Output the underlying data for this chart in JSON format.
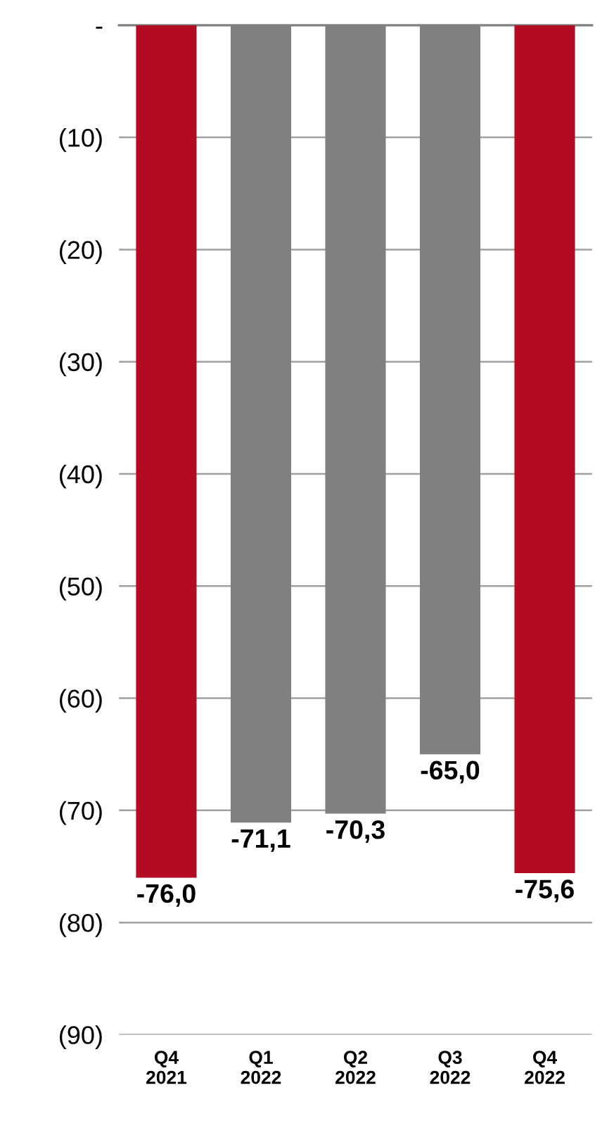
{
  "chart_data": {
    "type": "bar",
    "categories": [
      "Q4\n2021",
      "Q1\n2022",
      "Q2\n2022",
      "Q3\n2022",
      "Q4\n2022"
    ],
    "values": [
      -76.0,
      -71.1,
      -70.3,
      -65.0,
      -75.6
    ],
    "colors": [
      "#b30c22",
      "#808080",
      "#808080",
      "#808080",
      "#b30c22"
    ],
    "value_labels": [
      "-76,0",
      "-71,1",
      "-70,3",
      "-65,0",
      "-75,6"
    ],
    "ylim": [
      -90,
      0
    ],
    "yticks": [
      {
        "value": 0,
        "label": "-"
      },
      {
        "value": -10,
        "label": "(10)"
      },
      {
        "value": -20,
        "label": "(20)"
      },
      {
        "value": -30,
        "label": "(30)"
      },
      {
        "value": -40,
        "label": "(40)"
      },
      {
        "value": -50,
        "label": "(50)"
      },
      {
        "value": -60,
        "label": "(60)"
      },
      {
        "value": -70,
        "label": "(70)"
      },
      {
        "value": -80,
        "label": "(80)"
      },
      {
        "value": -90,
        "label": "(90)"
      }
    ],
    "grid": "y",
    "legend": false
  }
}
